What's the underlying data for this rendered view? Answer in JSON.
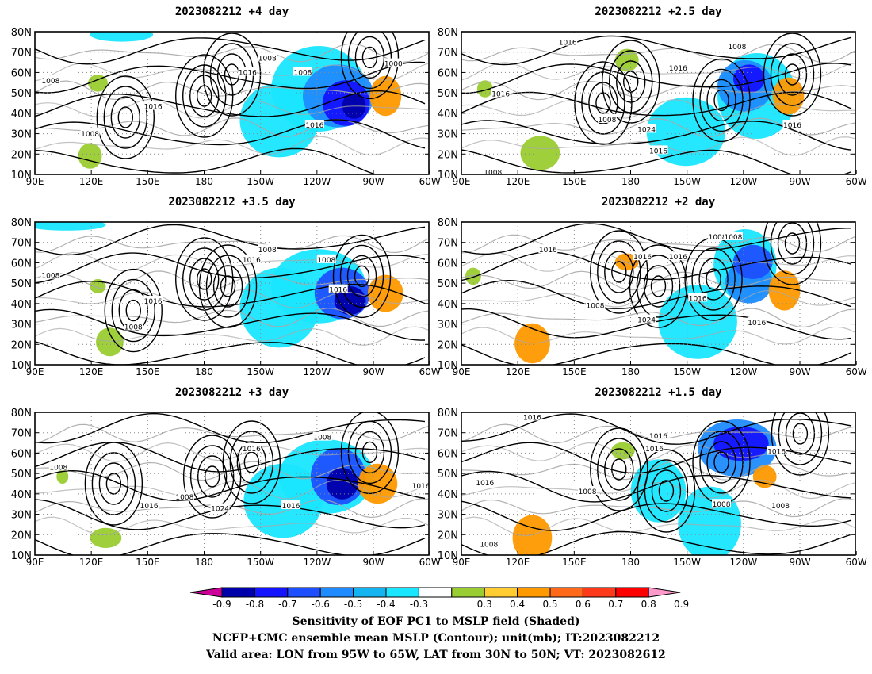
{
  "panels": [
    {
      "title": "2023082212 +4 day",
      "lon_labels": [
        "90E",
        "120E",
        "150E",
        "180",
        "150W",
        "120W",
        "90W",
        "60W"
      ],
      "lat_labels": [
        "80N",
        "70N",
        "60N",
        "50N",
        "40N",
        "30N",
        "20N",
        "10N"
      ],
      "contour_labels": [
        "1008",
        "1016",
        "1008",
        "1000",
        "1008",
        "1016",
        "1008",
        "1016"
      ]
    },
    {
      "title": "2023082212 +2.5 day",
      "lon_labels": [
        "90E",
        "120E",
        "150E",
        "180",
        "150W",
        "120W",
        "90W",
        "60W"
      ],
      "lat_labels": [
        "80N",
        "70N",
        "60N",
        "50N",
        "40N",
        "30N",
        "20N",
        "10N"
      ],
      "contour_labels": [
        "1016",
        "1008",
        "1016",
        "1016",
        "1008",
        "1024",
        "1016",
        "1016",
        "1008"
      ]
    },
    {
      "title": "2023082212 +3.5 day",
      "lon_labels": [
        "90E",
        "120E",
        "150E",
        "180",
        "150W",
        "120W",
        "90W",
        "60W"
      ],
      "lat_labels": [
        "80N",
        "70N",
        "60N",
        "50N",
        "40N",
        "30N",
        "20N",
        "10N"
      ],
      "contour_labels": [
        "1008",
        "1016",
        "1008",
        "1008",
        "1016",
        "1016",
        "1008"
      ]
    },
    {
      "title": "2023082212 +2 day",
      "lon_labels": [
        "90E",
        "120E",
        "150E",
        "180",
        "150W",
        "120W",
        "90W",
        "60W"
      ],
      "lat_labels": [
        "80N",
        "70N",
        "60N",
        "50N",
        "40N",
        "30N",
        "20N",
        "10N"
      ],
      "contour_labels": [
        "1016",
        "1008",
        "1016",
        "1016",
        "1008",
        "1008",
        "1024",
        "1016",
        "1016"
      ]
    },
    {
      "title": "2023082212 +3 day",
      "lon_labels": [
        "90E",
        "120E",
        "150E",
        "180",
        "150W",
        "120W",
        "90W",
        "60W"
      ],
      "lat_labels": [
        "80N",
        "70N",
        "60N",
        "50N",
        "40N",
        "30N",
        "20N",
        "10N"
      ],
      "contour_labels": [
        "1008",
        "1016",
        "1008",
        "1016",
        "1008",
        "1024",
        "1016",
        "1016"
      ]
    },
    {
      "title": "2023082212 +1.5 day",
      "lon_labels": [
        "90E",
        "120E",
        "150E",
        "180",
        "150W",
        "120W",
        "90W",
        "60W"
      ],
      "lat_labels": [
        "80N",
        "70N",
        "60N",
        "50N",
        "40N",
        "30N",
        "20N",
        "10N"
      ],
      "contour_labels": [
        "1016",
        "1016",
        "1016",
        "1008",
        "1016",
        "1008",
        "1008",
        "1016",
        "1008"
      ]
    }
  ],
  "colorbar": {
    "labels": [
      "-0.9",
      "-0.8",
      "-0.7",
      "-0.6",
      "-0.5",
      "-0.4",
      "-0.3",
      "0.3",
      "0.4",
      "0.5",
      "0.6",
      "0.7",
      "0.8",
      "0.9"
    ],
    "colors": [
      "#cc0099",
      "#0000aa",
      "#1414ff",
      "#1e50ff",
      "#1e8cff",
      "#14b4f0",
      "#19e6ff",
      "#ffffff",
      "#9acd32",
      "#ffcd32",
      "#ff9900",
      "#ff6a1a",
      "#ff3a1a",
      "#ff0000",
      "#ff99cc"
    ]
  },
  "caption": {
    "line1": "Sensitivity of EOF PC1 to MSLP field (Shaded)",
    "line2": "NCEP+CMC ensemble mean MSLP (Contour); unit(mb); IT:2023082212",
    "line3": "Valid area: LON from 95W to 65W, LAT from 30N to 50N; VT: 2023082612"
  }
}
